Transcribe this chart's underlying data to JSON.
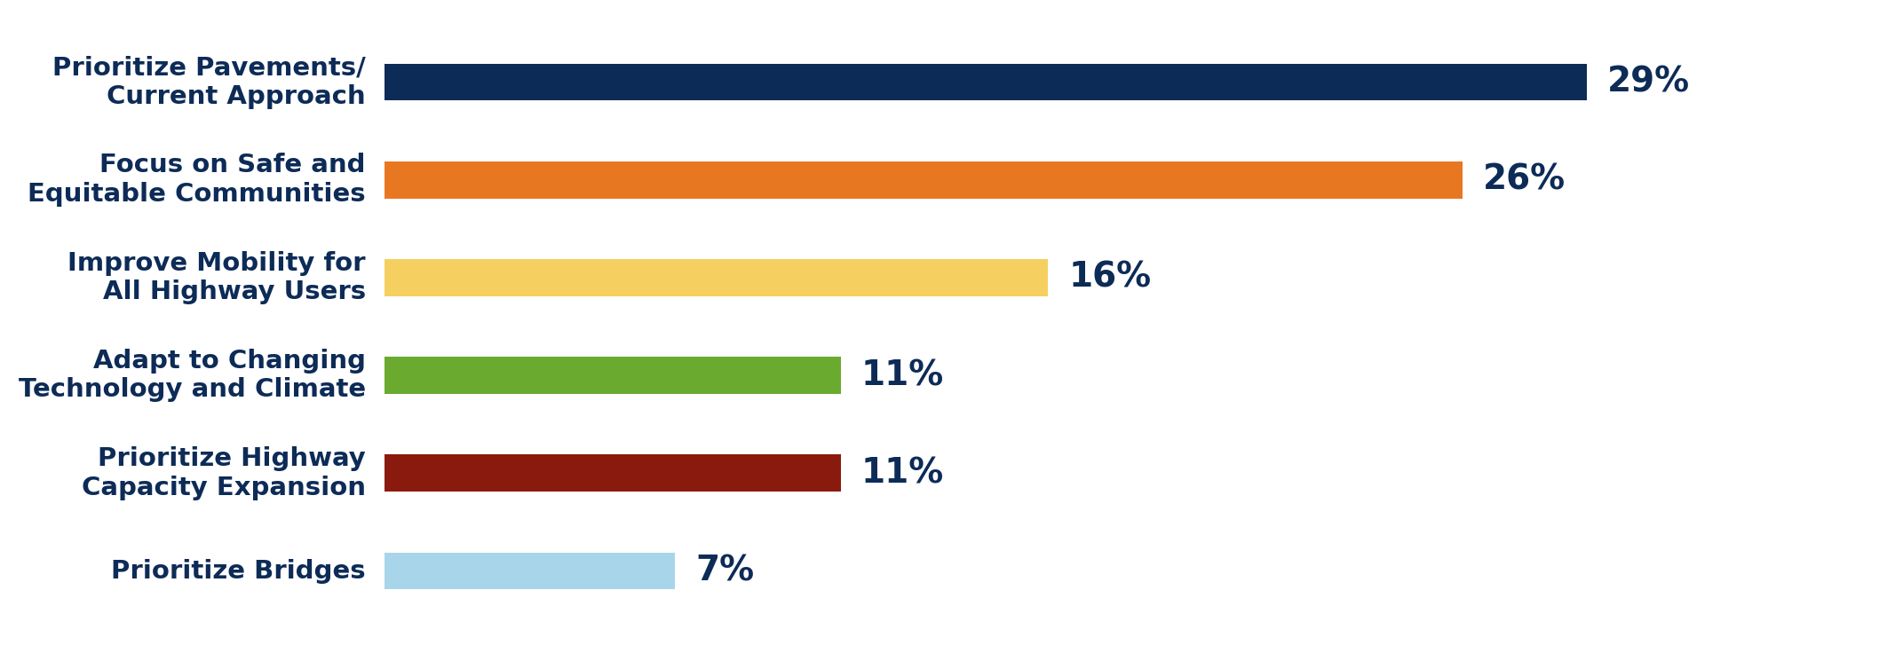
{
  "categories": [
    "Prioritize Bridges",
    "Prioritize Highway\nCapacity Expansion",
    "Adapt to Changing\nTechnology and Climate",
    "Improve Mobility for\nAll Highway Users",
    "Focus on Safe and\nEquitable Communities",
    "Prioritize Pavements/\nCurrent Approach"
  ],
  "values": [
    7,
    11,
    11,
    16,
    26,
    29
  ],
  "colors": [
    "#a8d5ea",
    "#8b1a0e",
    "#6aaa2e",
    "#f5d060",
    "#e87722",
    "#0d2b57"
  ],
  "label_texts": [
    "7%",
    "11%",
    "11%",
    "16%",
    "26%",
    "29%"
  ],
  "background_color": "#ffffff",
  "text_color": "#0d2b57",
  "bar_height": 0.38,
  "xlim": [
    0,
    36
  ],
  "label_fontsize": 28,
  "tick_fontsize": 21,
  "figsize": [
    21.34,
    7.36
  ],
  "dpi": 100
}
